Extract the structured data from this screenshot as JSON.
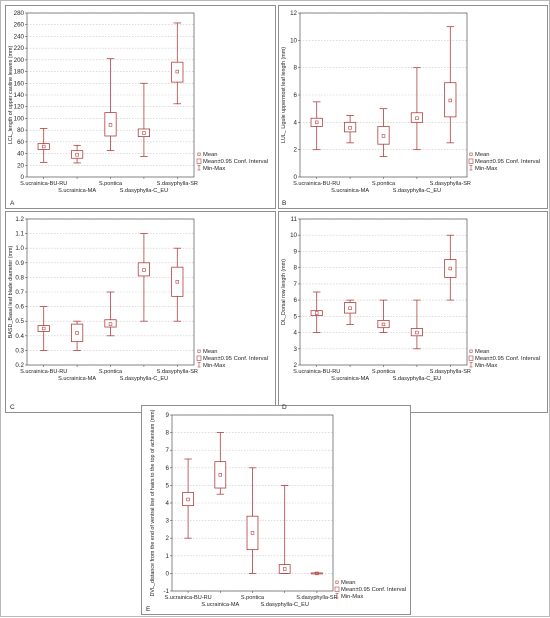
{
  "figure": {
    "colors": {
      "series": "#b0403f",
      "grid": "#c8c8c8",
      "axis": "#555555"
    },
    "legend": {
      "mean": "Mean",
      "ci": "Mean±0.95 Conf. Interval",
      "range": "Min-Max"
    }
  },
  "chart_data": [
    {
      "type": "box",
      "panel": "A",
      "ylabel": "LCL_length of upper cauline leaves (mm)",
      "ylim": [
        0,
        280
      ],
      "yticks": [
        0,
        20,
        40,
        60,
        80,
        100,
        120,
        140,
        160,
        180,
        200,
        220,
        240,
        260,
        280
      ],
      "categories": [
        "S.ucrainica-BU-RU",
        "S.ucrainica-MA",
        "S.pontica",
        "S.dasyphylla-C_EU",
        "S.dasyphylla-SR"
      ],
      "series": [
        {
          "mean": 52,
          "ci": [
            47,
            57
          ],
          "min": 25,
          "max": 83
        },
        {
          "mean": 38,
          "ci": [
            32,
            45
          ],
          "min": 24,
          "max": 54
        },
        {
          "mean": 89,
          "ci": [
            70,
            110
          ],
          "min": 45,
          "max": 202
        },
        {
          "mean": 75,
          "ci": [
            69,
            82
          ],
          "min": 35,
          "max": 160
        },
        {
          "mean": 180,
          "ci": [
            162,
            196
          ],
          "min": 125,
          "max": 263
        }
      ]
    },
    {
      "type": "box",
      "panel": "B",
      "ylabel": "LUL_ Ligule uppermost leaf length (mm)",
      "ylim": [
        0,
        12
      ],
      "yticks": [
        0,
        2,
        4,
        6,
        8,
        10,
        12
      ],
      "categories": [
        "S.ucrainica-BU-RU",
        "S.ucrainica-MA",
        "S.pontica",
        "S.dasyphylla-C_EU",
        "S.dasyphylla-SR"
      ],
      "series": [
        {
          "mean": 4.0,
          "ci": [
            3.7,
            4.3
          ],
          "min": 2.0,
          "max": 5.5
        },
        {
          "mean": 3.6,
          "ci": [
            3.3,
            4.0
          ],
          "min": 2.5,
          "max": 4.5
        },
        {
          "mean": 3.0,
          "ci": [
            2.4,
            3.7
          ],
          "min": 1.5,
          "max": 5.0
        },
        {
          "mean": 4.3,
          "ci": [
            4.0,
            4.7
          ],
          "min": 2.0,
          "max": 8.0
        },
        {
          "mean": 5.6,
          "ci": [
            4.4,
            6.9
          ],
          "min": 2.5,
          "max": 11.0
        }
      ]
    },
    {
      "type": "box",
      "panel": "C",
      "ylabel": "BASD_Basal leaf blade diameter (mm)",
      "ylim": [
        0.2,
        1.2
      ],
      "yticks": [
        0.2,
        0.3,
        0.4,
        0.5,
        0.6,
        0.7,
        0.8,
        0.9,
        1.0,
        1.1,
        1.2
      ],
      "categories": [
        "S.ucrainica-BU-RU",
        "S.ucrainica-MA",
        "S.pontica",
        "S.dasyphylla-C_EU",
        "S.dasyphylla-SR"
      ],
      "series": [
        {
          "mean": 0.45,
          "ci": [
            0.43,
            0.47
          ],
          "min": 0.3,
          "max": 0.6
        },
        {
          "mean": 0.42,
          "ci": [
            0.36,
            0.48
          ],
          "min": 0.3,
          "max": 0.5
        },
        {
          "mean": 0.48,
          "ci": [
            0.46,
            0.51
          ],
          "min": 0.4,
          "max": 0.7
        },
        {
          "mean": 0.85,
          "ci": [
            0.81,
            0.9
          ],
          "min": 0.5,
          "max": 1.1
        },
        {
          "mean": 0.77,
          "ci": [
            0.67,
            0.87
          ],
          "min": 0.5,
          "max": 1.0
        }
      ]
    },
    {
      "type": "box",
      "panel": "D",
      "ylabel": "DL_Dorsal row length (mm)",
      "ylim": [
        2,
        11
      ],
      "yticks": [
        2,
        3,
        4,
        5,
        6,
        7,
        8,
        9,
        10,
        11
      ],
      "categories": [
        "S.ucrainica-BU-RU",
        "S.ucrainica-MA",
        "S.pontica",
        "S.dasyphylla-C_EU",
        "S.dasyphylla-SR"
      ],
      "series": [
        {
          "mean": 5.2,
          "ci": [
            5.05,
            5.35
          ],
          "min": 4.0,
          "max": 6.5
        },
        {
          "mean": 5.5,
          "ci": [
            5.2,
            5.85
          ],
          "min": 4.5,
          "max": 6.0
        },
        {
          "mean": 4.5,
          "ci": [
            4.3,
            4.75
          ],
          "min": 4.0,
          "max": 6.0
        },
        {
          "mean": 4.0,
          "ci": [
            3.8,
            4.25
          ],
          "min": 3.0,
          "max": 6.0
        },
        {
          "mean": 7.95,
          "ci": [
            7.4,
            8.5
          ],
          "min": 6.0,
          "max": 10.0
        }
      ]
    },
    {
      "type": "box",
      "panel": "E",
      "ylabel": "DVL_distance from the end of ventral line of hairs to the top of achenium (mm)",
      "ylim": [
        -1,
        9
      ],
      "yticks": [
        -1,
        0,
        1,
        2,
        3,
        4,
        5,
        6,
        7,
        8,
        9
      ],
      "categories": [
        "S.ucrainica-BU-RU",
        "S.ucrainica-MA",
        "S.pontica",
        "S.dasyphylla-C_EU",
        "S.dasyphylla-SR"
      ],
      "series": [
        {
          "mean": 4.2,
          "ci": [
            3.85,
            4.6
          ],
          "min": 2.0,
          "max": 6.5
        },
        {
          "mean": 5.6,
          "ci": [
            4.85,
            6.35
          ],
          "min": 4.5,
          "max": 8.0
        },
        {
          "mean": 2.3,
          "ci": [
            1.35,
            3.25
          ],
          "min": 0.0,
          "max": 6.0
        },
        {
          "mean": 0.25,
          "ci": [
            0.0,
            0.5
          ],
          "min": 0.0,
          "max": 5.0
        },
        {
          "mean": 0.0,
          "ci": [
            -0.03,
            0.03
          ],
          "min": 0.0,
          "max": 0.0
        }
      ]
    }
  ]
}
